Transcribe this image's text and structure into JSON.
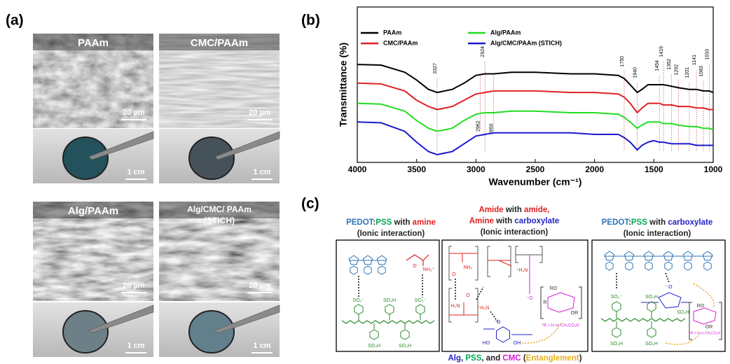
{
  "panel_a": {
    "label": "(a)",
    "images": [
      {
        "title": [
          "PAAm"
        ],
        "sem_scale": "20 µm",
        "photo_scale": "1 cm"
      },
      {
        "title": [
          "CMC/PAAm"
        ],
        "sem_scale": "20 µm",
        "photo_scale": "1 cm"
      },
      {
        "title": [
          "Alg/PAAm"
        ],
        "sem_scale": "20 µm",
        "photo_scale": "1 cm"
      },
      {
        "title": [
          "Alg/CMC/ PAAm",
          "(STICH)"
        ],
        "sem_scale": "20 µm",
        "photo_scale": "1 cm"
      }
    ]
  },
  "chart_data": {
    "type": "line",
    "label": "(b)",
    "x_label": "Wavenumber (cm⁻¹)",
    "y_label": "Transmittance (%)",
    "x": [
      4000,
      3800,
      3600,
      3500,
      3400,
      3327,
      3200,
      3100,
      3000,
      2924,
      2850,
      2700,
      2500,
      2200,
      2000,
      1800,
      1750,
      1700,
      1640,
      1600,
      1550,
      1500,
      1454,
      1419,
      1352,
      1292,
      1201,
      1141,
      1083,
      1033,
      1000
    ],
    "xlim": [
      4000,
      1000
    ],
    "xticks": [
      4000,
      3500,
      3000,
      2500,
      2000,
      1500,
      1000
    ],
    "ylim": [
      0,
      100
    ],
    "series": [
      {
        "name": "PAAm",
        "color": "#000000",
        "values": [
          63,
          62.6,
          58,
          53,
          47,
          45,
          47,
          51,
          56,
          57,
          57,
          58,
          58,
          57,
          57,
          56,
          54,
          50,
          45,
          47,
          50,
          50,
          50,
          50,
          49,
          48,
          47,
          47,
          46,
          46,
          45
        ]
      },
      {
        "name": "CMC/PAAm",
        "color": "#e02020",
        "values": [
          51,
          50.5,
          46,
          40,
          36,
          34,
          36,
          40,
          44,
          45,
          46,
          46,
          46,
          45,
          45,
          44,
          42,
          38,
          32,
          35,
          38,
          38,
          38,
          37,
          37,
          36,
          36,
          35,
          35,
          34,
          34
        ]
      },
      {
        "name": "Alg/PAAm",
        "color": "#22dd22",
        "values": [
          38,
          37.5,
          33,
          27,
          22,
          20,
          22,
          27,
          31,
          32,
          32,
          33,
          33,
          32,
          32,
          31,
          29,
          26,
          22,
          24,
          26,
          26,
          26,
          25,
          25,
          24,
          23,
          23,
          22,
          22,
          21
        ]
      },
      {
        "name": "Alg/CMC/PAAm (STICH)",
        "color": "#1a1acc",
        "values": [
          26,
          25.5,
          20,
          13,
          7,
          5,
          7,
          12,
          17,
          18,
          19,
          19,
          19,
          19,
          18,
          18,
          16,
          13,
          8,
          11,
          13,
          14,
          13,
          13,
          12,
          12,
          12,
          11,
          11,
          11,
          11
        ]
      }
    ],
    "peaks": [
      3327,
      2924,
      2962,
      2850,
      1750,
      1640,
      1454,
      1419,
      1352,
      1292,
      1201,
      1141,
      1083,
      1033
    ],
    "grid": false
  },
  "panel_c": {
    "label": "(c)",
    "columns": [
      {
        "heading": [
          [
            {
              "text": "PEDOT",
              "color": "#2e75b6"
            },
            {
              "text": ":",
              "color": "#222222"
            },
            {
              "text": "PSS",
              "color": "#00a651"
            },
            {
              "text": " with ",
              "color": "#222222"
            },
            {
              "text": "amine",
              "color": "#e02020"
            }
          ],
          [
            {
              "text": "(Ionic interaction)",
              "color": "#222222"
            }
          ]
        ],
        "labels": [
          {
            "text": "SO₃⁻",
            "color": "#2a8a2a"
          },
          {
            "text": "SO₃H",
            "color": "#2a8a2a"
          },
          {
            "text": "SO₃⁻",
            "color": "#2a8a2a"
          },
          {
            "text": "SO₃H",
            "color": "#2a8a2a"
          },
          {
            "text": "SO₃H",
            "color": "#2a8a2a"
          },
          {
            "text": "NH₃⁺",
            "color": "#e02020"
          },
          {
            "text": "O",
            "color": "#e02020"
          }
        ]
      },
      {
        "heading": [
          [
            {
              "text": "Amide",
              "color": "#e02020"
            },
            {
              "text": " with ",
              "color": "#222222"
            },
            {
              "text": "amide,",
              "color": "#e02020"
            }
          ],
          [
            {
              "text": "Amine",
              "color": "#e02020"
            },
            {
              "text": " with ",
              "color": "#222222"
            },
            {
              "text": "carboxylate",
              "color": "#2323c8"
            }
          ],
          [
            {
              "text": "(Ionic interaction)",
              "color": "#222222"
            }
          ]
        ],
        "labels": [
          {
            "text": "NH₂",
            "color": "#e02020"
          },
          {
            "text": "O",
            "color": "#e02020"
          },
          {
            "text": "H₂N",
            "color": "#e02020"
          },
          {
            "text": "O",
            "color": "#e02020"
          },
          {
            "text": "⁺H₃N",
            "color": "#e02020"
          },
          {
            "text": "⁺H₃N",
            "color": "#e02020"
          },
          {
            "text": "⁻O",
            "color": "#d81bd8"
          },
          {
            "text": "RO",
            "color": "#333333"
          },
          {
            "text": "R",
            "color": "#333333"
          },
          {
            "text": "OR",
            "color": "#333333"
          },
          {
            "text": "*R = H or CH₂CO₂H",
            "color": "#d81bd8"
          },
          {
            "text": "⁻O",
            "color": "#2323c8"
          },
          {
            "text": "HO",
            "color": "#2323c8"
          },
          {
            "text": "OH",
            "color": "#2323c8"
          }
        ]
      },
      {
        "heading": [
          [
            {
              "text": "PEDOT",
              "color": "#2e75b6"
            },
            {
              "text": ":",
              "color": "#222222"
            },
            {
              "text": "PSS",
              "color": "#00a651"
            },
            {
              "text": " with ",
              "color": "#222222"
            },
            {
              "text": "carboxylate",
              "color": "#2323c8"
            }
          ],
          [
            {
              "text": "(Ionic interaction)",
              "color": "#222222"
            }
          ]
        ],
        "labels": [
          {
            "text": "SO₃⁻",
            "color": "#2a8a2a"
          },
          {
            "text": "SO₃H",
            "color": "#2a8a2a"
          },
          {
            "text": "SO₃H",
            "color": "#2a8a2a"
          },
          {
            "text": "⁻O",
            "color": "#2323c8"
          },
          {
            "text": "SO₃H",
            "color": "#2a8a2a"
          },
          {
            "text": "SO₃H",
            "color": "#2a8a2a"
          },
          {
            "text": "RO",
            "color": "#333333"
          },
          {
            "text": "OR",
            "color": "#333333"
          },
          {
            "text": "*R = H or CH₂CO₂H",
            "color": "#d81bd8"
          }
        ]
      }
    ],
    "caption": [
      {
        "text": "Alg",
        "color": "#2323c8"
      },
      {
        "text": ", ",
        "color": "#222222"
      },
      {
        "text": "PSS",
        "color": "#00a651"
      },
      {
        "text": ", and ",
        "color": "#222222"
      },
      {
        "text": "CMC",
        "color": "#d81bd8"
      },
      {
        "text": " (",
        "color": "#222222"
      },
      {
        "text": "Entanglement",
        "color": "#e8b020"
      },
      {
        "text": ")",
        "color": "#222222"
      }
    ]
  }
}
